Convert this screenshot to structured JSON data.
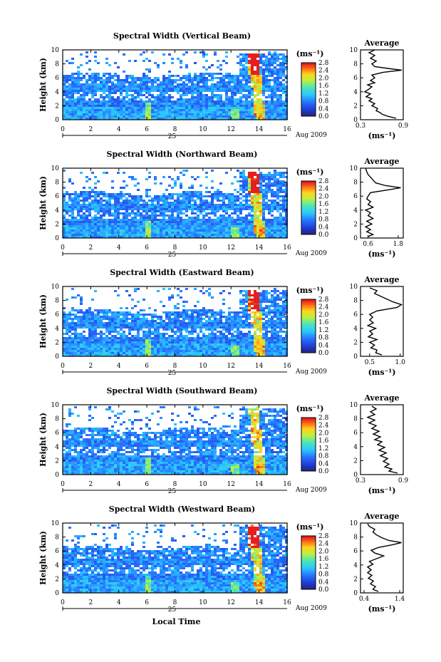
{
  "chart_data": [
    {
      "type": "heatmap",
      "title": "Spectral Width (Vertical Beam)",
      "ylabel": "Height (km)",
      "xlabel": "",
      "x_ticks": [
        "0",
        "2",
        "4",
        "6",
        "8",
        "10",
        "12",
        "14",
        "16"
      ],
      "y_ticks": [
        "0",
        "2",
        "4",
        "6",
        "8",
        "10"
      ],
      "xlim": [
        0,
        16
      ],
      "ylim": [
        0,
        10
      ],
      "date_day": "25",
      "date_label": "Aug 2009",
      "colorbar": {
        "unit": "(ms⁻¹)",
        "ticks": [
          "0.0",
          "0.4",
          "0.8",
          "1.2",
          "1.6",
          "2.0",
          "2.4",
          "2.8"
        ]
      },
      "average": {
        "title": "Average",
        "unit": "(ms⁻¹)",
        "x_ticks": [
          "0.3",
          "0.9"
        ],
        "xlim": [
          0.3,
          0.9
        ],
        "profile": [
          [
            0.2,
            0.8
          ],
          [
            0.5,
            0.68
          ],
          [
            0.8,
            0.6
          ],
          [
            1.0,
            0.58
          ],
          [
            1.3,
            0.52
          ],
          [
            1.6,
            0.54
          ],
          [
            2.0,
            0.46
          ],
          [
            2.3,
            0.5
          ],
          [
            2.7,
            0.42
          ],
          [
            3.0,
            0.46
          ],
          [
            3.3,
            0.38
          ],
          [
            3.7,
            0.44
          ],
          [
            4.0,
            0.36
          ],
          [
            4.4,
            0.42
          ],
          [
            4.7,
            0.46
          ],
          [
            5.0,
            0.4
          ],
          [
            5.3,
            0.5
          ],
          [
            5.6,
            0.44
          ],
          [
            6.0,
            0.5
          ],
          [
            6.4,
            0.46
          ],
          [
            6.8,
            0.62
          ],
          [
            7.1,
            0.88
          ],
          [
            7.3,
            0.72
          ],
          [
            7.6,
            0.5
          ],
          [
            8.0,
            0.46
          ],
          [
            8.4,
            0.52
          ],
          [
            8.8,
            0.44
          ],
          [
            9.2,
            0.5
          ],
          [
            9.6,
            0.42
          ],
          [
            10.0,
            0.5
          ]
        ]
      }
    },
    {
      "type": "heatmap",
      "title": "Spectral Width (Northward Beam)",
      "ylabel": "Height (km)",
      "xlabel": "",
      "x_ticks": [
        "0",
        "2",
        "4",
        "6",
        "8",
        "10",
        "12",
        "14",
        "16"
      ],
      "y_ticks": [
        "0",
        "2",
        "4",
        "6",
        "8",
        "10"
      ],
      "xlim": [
        0,
        16
      ],
      "ylim": [
        0,
        10
      ],
      "date_day": "25",
      "date_label": "Aug 2009",
      "colorbar": {
        "unit": "(ms⁻¹)",
        "ticks": [
          "0.0",
          "0.4",
          "0.8",
          "1.2",
          "1.6",
          "2.0",
          "2.4",
          "2.8"
        ]
      },
      "average": {
        "title": "Average",
        "unit": "(ms⁻¹)",
        "x_ticks": [
          "0.6",
          "1.8"
        ],
        "xlim": [
          0.3,
          2.0
        ],
        "profile": [
          [
            0.2,
            0.6
          ],
          [
            0.5,
            0.8
          ],
          [
            0.9,
            0.55
          ],
          [
            1.2,
            0.7
          ],
          [
            1.6,
            0.5
          ],
          [
            2.0,
            0.75
          ],
          [
            2.4,
            0.55
          ],
          [
            2.8,
            0.8
          ],
          [
            3.2,
            0.6
          ],
          [
            3.6,
            0.7
          ],
          [
            4.0,
            0.5
          ],
          [
            4.4,
            0.8
          ],
          [
            4.8,
            0.6
          ],
          [
            5.2,
            0.7
          ],
          [
            5.6,
            0.55
          ],
          [
            6.0,
            0.6
          ],
          [
            6.5,
            0.7
          ],
          [
            6.9,
            1.4
          ],
          [
            7.2,
            1.9
          ],
          [
            7.5,
            1.3
          ],
          [
            7.9,
            0.9
          ],
          [
            8.3,
            0.8
          ],
          [
            8.7,
            0.7
          ],
          [
            9.1,
            0.6
          ],
          [
            9.5,
            0.55
          ],
          [
            10.0,
            0.5
          ]
        ]
      }
    },
    {
      "type": "heatmap",
      "title": "Spectral Width (Eastward Beam)",
      "ylabel": "Height (km)",
      "xlabel": "",
      "x_ticks": [
        "0",
        "2",
        "4",
        "6",
        "8",
        "10",
        "12",
        "14",
        "16"
      ],
      "y_ticks": [
        "0",
        "2",
        "4",
        "6",
        "8",
        "10"
      ],
      "xlim": [
        0,
        16
      ],
      "ylim": [
        0,
        10
      ],
      "date_day": "25",
      "date_label": "Aug 2009",
      "colorbar": {
        "unit": "(ms⁻¹)",
        "ticks": [
          "0.0",
          "0.4",
          "0.8",
          "1.2",
          "1.6",
          "2.0",
          "2.4",
          "2.8"
        ]
      },
      "average": {
        "title": "Average",
        "unit": "(ms⁻¹)",
        "x_ticks": [
          "0.5",
          "1.0"
        ],
        "xlim": [
          0.35,
          1.05
        ],
        "profile": [
          [
            0.2,
            0.7
          ],
          [
            0.5,
            0.6
          ],
          [
            0.9,
            0.62
          ],
          [
            1.2,
            0.52
          ],
          [
            1.6,
            0.58
          ],
          [
            2.0,
            0.5
          ],
          [
            2.4,
            0.62
          ],
          [
            2.8,
            0.48
          ],
          [
            3.2,
            0.55
          ],
          [
            3.6,
            0.5
          ],
          [
            4.0,
            0.6
          ],
          [
            4.4,
            0.47
          ],
          [
            4.8,
            0.56
          ],
          [
            5.2,
            0.5
          ],
          [
            5.6,
            0.55
          ],
          [
            6.0,
            0.5
          ],
          [
            6.5,
            0.62
          ],
          [
            7.0,
            0.95
          ],
          [
            7.4,
            1.02
          ],
          [
            7.8,
            0.88
          ],
          [
            8.2,
            0.78
          ],
          [
            8.6,
            0.68
          ],
          [
            9.0,
            0.58
          ],
          [
            9.4,
            0.62
          ],
          [
            9.8,
            0.5
          ]
        ]
      }
    },
    {
      "type": "heatmap",
      "title": "Spectral Width (Southward Beam)",
      "ylabel": "Height (km)",
      "xlabel": "",
      "x_ticks": [
        "0",
        "2",
        "4",
        "6",
        "8",
        "10",
        "12",
        "14",
        "16"
      ],
      "y_ticks": [
        "0",
        "2",
        "4",
        "6",
        "8",
        "10"
      ],
      "xlim": [
        0,
        16
      ],
      "ylim": [
        0,
        10
      ],
      "date_day": "25",
      "date_label": "Aug 2009",
      "colorbar": {
        "unit": "(ms⁻¹)",
        "ticks": [
          "0.0",
          "0.4",
          "0.8",
          "1.2",
          "1.6",
          "2.0",
          "2.4",
          "2.8"
        ]
      },
      "average": {
        "title": "Average",
        "unit": "(ms⁻¹)",
        "x_ticks": [
          "0.3",
          "0.9"
        ],
        "xlim": [
          0.3,
          0.9
        ],
        "profile": [
          [
            0.2,
            0.82
          ],
          [
            0.5,
            0.7
          ],
          [
            0.8,
            0.74
          ],
          [
            1.1,
            0.64
          ],
          [
            1.5,
            0.7
          ],
          [
            1.9,
            0.62
          ],
          [
            2.3,
            0.68
          ],
          [
            2.7,
            0.58
          ],
          [
            3.1,
            0.66
          ],
          [
            3.5,
            0.56
          ],
          [
            3.9,
            0.64
          ],
          [
            4.3,
            0.54
          ],
          [
            4.7,
            0.6
          ],
          [
            5.0,
            0.5
          ],
          [
            5.4,
            0.58
          ],
          [
            5.8,
            0.48
          ],
          [
            6.2,
            0.56
          ],
          [
            6.6,
            0.46
          ],
          [
            7.0,
            0.52
          ],
          [
            7.4,
            0.42
          ],
          [
            7.8,
            0.5
          ],
          [
            8.2,
            0.4
          ],
          [
            8.6,
            0.5
          ],
          [
            9.0,
            0.44
          ],
          [
            9.4,
            0.52
          ],
          [
            9.8,
            0.46
          ]
        ]
      }
    },
    {
      "type": "heatmap",
      "title": "Spectral Width (Westward Beam)",
      "ylabel": "Height (km)",
      "xlabel": "Local Time",
      "x_ticks": [
        "0",
        "2",
        "4",
        "6",
        "8",
        "10",
        "12",
        "14",
        "16"
      ],
      "y_ticks": [
        "0",
        "2",
        "4",
        "6",
        "8",
        "10"
      ],
      "xlim": [
        0,
        16
      ],
      "ylim": [
        0,
        10
      ],
      "date_day": "25",
      "date_label": "Aug 2009",
      "colorbar": {
        "unit": "(ms⁻¹)",
        "ticks": [
          "0.0",
          "0.4",
          "0.8",
          "1.2",
          "1.6",
          "2.0",
          "2.4",
          "2.8"
        ]
      },
      "average": {
        "title": "Average",
        "unit": "(ms⁻¹)",
        "x_ticks": [
          "0.4",
          "1.4"
        ],
        "xlim": [
          0.3,
          1.5
        ],
        "profile": [
          [
            0.2,
            0.8
          ],
          [
            0.5,
            0.65
          ],
          [
            0.9,
            0.72
          ],
          [
            1.3,
            0.58
          ],
          [
            1.7,
            0.66
          ],
          [
            2.1,
            0.52
          ],
          [
            2.5,
            0.62
          ],
          [
            2.9,
            0.5
          ],
          [
            3.3,
            0.6
          ],
          [
            3.7,
            0.5
          ],
          [
            4.1,
            0.65
          ],
          [
            4.5,
            0.55
          ],
          [
            4.9,
            0.75
          ],
          [
            5.3,
            0.95
          ],
          [
            5.7,
            0.7
          ],
          [
            6.1,
            0.6
          ],
          [
            6.5,
            0.8
          ],
          [
            6.9,
            1.2
          ],
          [
            7.2,
            1.45
          ],
          [
            7.5,
            1.1
          ],
          [
            7.9,
            0.9
          ],
          [
            8.3,
            0.75
          ],
          [
            8.7,
            0.65
          ],
          [
            9.1,
            0.7
          ],
          [
            9.5,
            0.55
          ],
          [
            9.9,
            0.5
          ]
        ]
      }
    }
  ],
  "colors": {
    "axis": "#000000",
    "background": "#ffffff"
  }
}
